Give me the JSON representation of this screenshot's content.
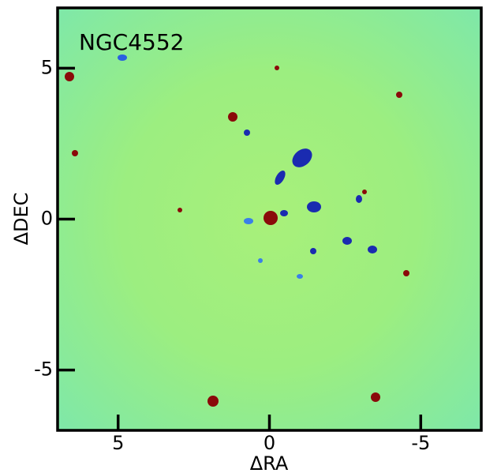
{
  "chart_data": {
    "type": "image",
    "annotation": "NGC4552",
    "xlabel": "ΔRA",
    "ylabel": "ΔDEC",
    "xlim": [
      7,
      -7
    ],
    "ylim": [
      -7,
      7
    ],
    "xticks": [
      5,
      0,
      -5
    ],
    "yticks": [
      5,
      0,
      -5
    ]
  }
}
